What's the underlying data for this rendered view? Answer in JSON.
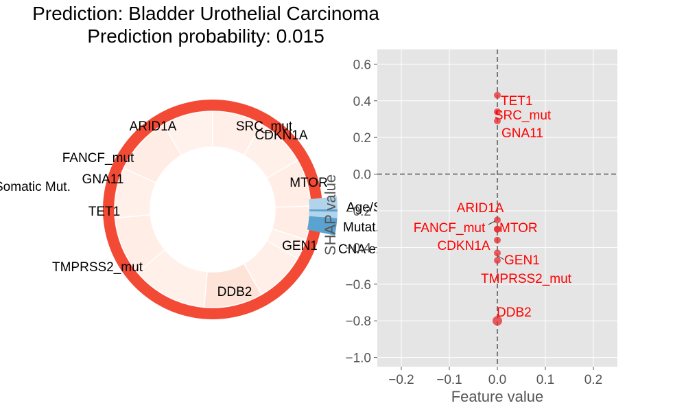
{
  "header": {
    "title_line1": "Prediction: Bladder Urothelial Carcinoma",
    "title_line2": "Prediction probability: 0.015"
  },
  "colors": {
    "outer_ring": "#f34a36",
    "positive_light": "#fee9e1",
    "negative_dark": "#5aa2d0",
    "negative_light": "#b1d4ea",
    "point": "#e8292c",
    "label": "#ff0000",
    "panel_bg": "#e5e5e5"
  },
  "chart_data": [
    {
      "type": "pie",
      "variant": "donut",
      "labels": [
        "ARID1A",
        "SRC_mut",
        "CDKN1A",
        "FANCF_mut",
        "Somatic Mut.",
        "GNA11",
        "MTOR",
        "TET1",
        "Age/S...",
        "Mutat...",
        "CNA e...",
        "GEN1",
        "TMPRSS2_mut",
        "DDB2"
      ],
      "outer_ring": "prediction probability",
      "note_truncated": [
        "Age/S",
        "Mutat",
        "CNA e"
      ]
    },
    {
      "type": "scatter",
      "xlabel": "Feature value",
      "ylabel": "SHAP value",
      "xlim": [
        -0.25,
        0.25
      ],
      "ylim": [
        -1.05,
        0.68
      ],
      "xticks": [
        -0.2,
        -0.1,
        0.0,
        0.1,
        0.2
      ],
      "xtick_labels": [
        "−0.2",
        "−0.1",
        "0.0",
        "0.1",
        "0.2"
      ],
      "yticks": [
        0.6,
        0.4,
        0.2,
        0.0,
        -0.2,
        -0.4,
        -0.6,
        -0.8,
        -1.0
      ],
      "ytick_labels": [
        "0.6",
        "0.4",
        "0.2",
        "0.0",
        "−0.2",
        "−0.4",
        "−0.6",
        "−0.8",
        "−1.0"
      ],
      "grid": true,
      "reference_lines": {
        "x": 0,
        "y": 0,
        "style": "dashed"
      },
      "points": [
        {
          "label": "TET1",
          "x": 0,
          "y": 0.43
        },
        {
          "label": "SRC_mut",
          "x": 0,
          "y": 0.34
        },
        {
          "label": "GNA11",
          "x": 0,
          "y": 0.29
        },
        {
          "label": "ARID1A",
          "x": 0,
          "y": -0.25
        },
        {
          "label": "MTOR",
          "x": 0,
          "y": -0.3
        },
        {
          "label": "FANCF_mut",
          "x": 0,
          "y": -0.3
        },
        {
          "label": "CDKN1A",
          "x": 0,
          "y": -0.36
        },
        {
          "label": "GEN1",
          "x": 0,
          "y": -0.43
        },
        {
          "label": "TMPRSS2_mut",
          "x": 0,
          "y": -0.47
        },
        {
          "label": "DDB2",
          "x": 0,
          "y": -0.8
        }
      ]
    }
  ]
}
